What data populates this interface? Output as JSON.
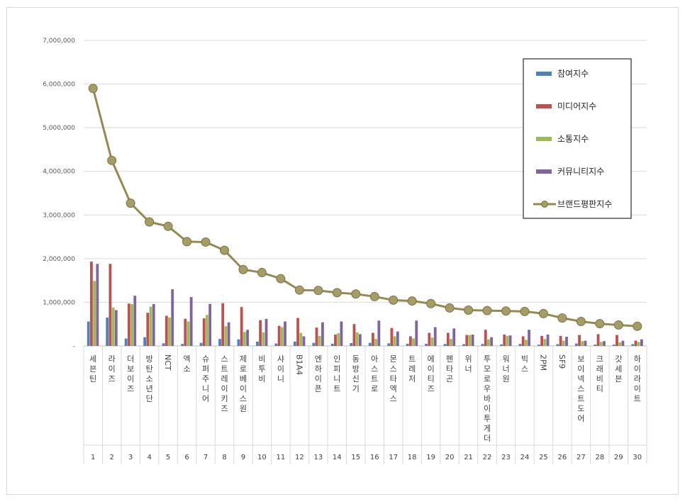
{
  "chart_data": {
    "type": "bar",
    "title": "",
    "xlabel": "",
    "ylabel": "",
    "ylim": [
      0,
      7000000
    ],
    "yticks": [
      "-",
      "1,000,000",
      "2,000,000",
      "3,000,000",
      "4,000,000",
      "5,000,000",
      "6,000,000",
      "7,000,000"
    ],
    "grid": true,
    "legend_position": "top-right",
    "ranks": [
      1,
      2,
      3,
      4,
      5,
      6,
      7,
      8,
      9,
      10,
      11,
      12,
      13,
      14,
      15,
      16,
      17,
      18,
      19,
      20,
      21,
      22,
      23,
      24,
      25,
      26,
      27,
      28,
      29,
      30
    ],
    "categories": [
      "세븐틴",
      "라이즈",
      "더보이즈",
      "방탄소년단",
      "NCT",
      "엑소",
      "슈퍼주니어",
      "스트레이키즈",
      "제로베이스원",
      "비투비",
      "샤이니",
      "B1A4",
      "엔하이픈",
      "인피니트",
      "동방신기",
      "아스트로",
      "몬스타엑스",
      "트레저",
      "에이티즈",
      "펜타곤",
      "위너",
      "투모로우바이투게더",
      "워너원",
      "빅스",
      "2PM",
      "SF9",
      "보이넥스트도어",
      "크래비티",
      "갓세븐",
      "하이라이트"
    ],
    "series": [
      {
        "name": "참여지수",
        "color": "#4f81bd",
        "values": [
          560000,
          650000,
          170000,
          200000,
          60000,
          45000,
          70000,
          160000,
          150000,
          100000,
          55000,
          100000,
          70000,
          50000,
          65000,
          70000,
          60000,
          50000,
          50000,
          45000,
          40000,
          45000,
          35000,
          45000,
          30000,
          40000,
          55000,
          30000,
          30000,
          40000
        ]
      },
      {
        "name": "미디어지수",
        "color": "#c0504d",
        "values": [
          1930000,
          1880000,
          970000,
          760000,
          690000,
          620000,
          630000,
          980000,
          890000,
          590000,
          460000,
          640000,
          420000,
          260000,
          500000,
          300000,
          410000,
          220000,
          300000,
          300000,
          250000,
          370000,
          260000,
          220000,
          230000,
          230000,
          250000,
          270000,
          250000,
          120000
        ]
      },
      {
        "name": "소통지수",
        "color": "#9bbb59",
        "values": [
          1490000,
          880000,
          960000,
          900000,
          650000,
          560000,
          710000,
          450000,
          320000,
          310000,
          430000,
          300000,
          230000,
          290000,
          310000,
          160000,
          220000,
          170000,
          190000,
          160000,
          250000,
          150000,
          230000,
          140000,
          160000,
          120000,
          110000,
          90000,
          80000,
          90000
        ]
      },
      {
        "name": "커뮤니티지수",
        "color": "#8064a2",
        "values": [
          1880000,
          820000,
          1150000,
          960000,
          1300000,
          1120000,
          960000,
          540000,
          370000,
          620000,
          560000,
          220000,
          540000,
          560000,
          270000,
          580000,
          330000,
          580000,
          430000,
          400000,
          260000,
          200000,
          240000,
          370000,
          260000,
          210000,
          120000,
          110000,
          120000,
          150000
        ]
      },
      {
        "name": "브랜드평판지수",
        "color": "#948a54",
        "values": [
          5900000,
          4250000,
          3270000,
          2840000,
          2740000,
          2390000,
          2380000,
          2190000,
          1750000,
          1680000,
          1540000,
          1280000,
          1270000,
          1220000,
          1190000,
          1130000,
          1050000,
          1030000,
          970000,
          870000,
          820000,
          810000,
          800000,
          790000,
          740000,
          640000,
          560000,
          510000,
          480000,
          450000
        ]
      }
    ]
  }
}
